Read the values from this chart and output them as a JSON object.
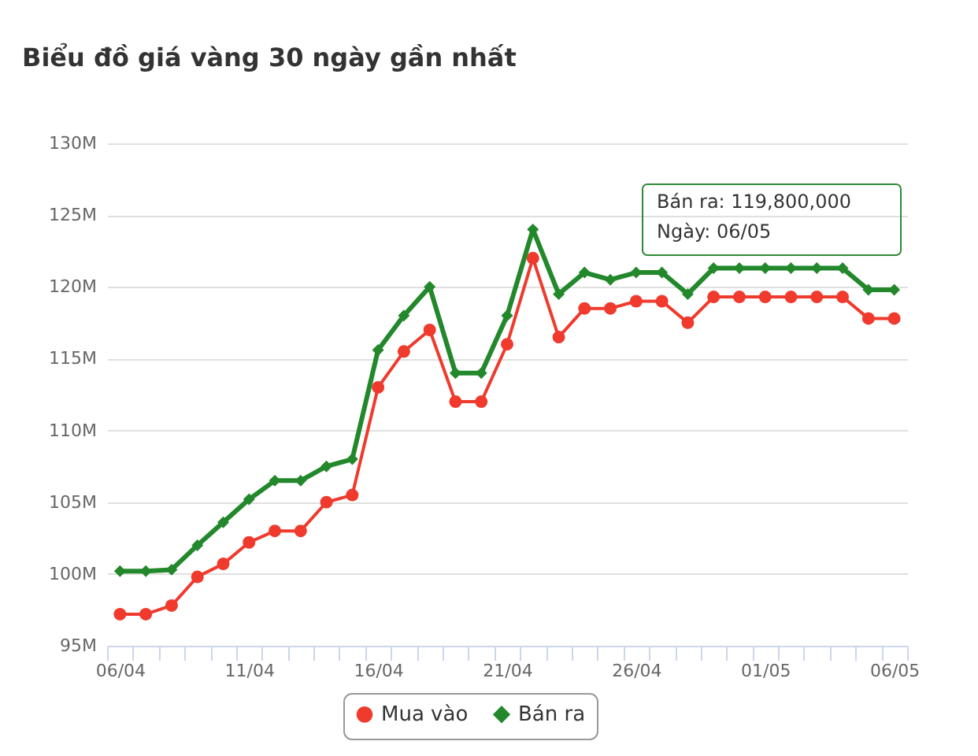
{
  "chart_data": {
    "type": "line",
    "title": "Biểu đồ giá vàng 30 ngày gần nhất",
    "categories": [
      "06/04",
      null,
      null,
      null,
      null,
      "11/04",
      null,
      null,
      null,
      null,
      "16/04",
      null,
      null,
      null,
      null,
      "21/04",
      null,
      null,
      null,
      null,
      "26/04",
      null,
      null,
      null,
      null,
      "01/05",
      null,
      null,
      null,
      null,
      "06/05"
    ],
    "series": [
      {
        "name": "Mua vào",
        "color": "#ef3a2d",
        "marker": "circle",
        "values": [
          97.2,
          97.2,
          97.8,
          99.8,
          100.7,
          102.2,
          103.0,
          103.0,
          105.0,
          105.5,
          113.0,
          115.5,
          117.0,
          112.0,
          112.0,
          116.0,
          122.0,
          116.5,
          118.5,
          118.5,
          119.0,
          119.0,
          117.5,
          119.3,
          119.3,
          119.3,
          119.3,
          119.3,
          119.3,
          117.8,
          117.8
        ]
      },
      {
        "name": "Bán ra",
        "color": "#22882b",
        "marker": "diamond",
        "values": [
          100.2,
          100.2,
          100.3,
          102.0,
          103.6,
          105.2,
          106.5,
          106.5,
          107.5,
          108.0,
          115.6,
          118.0,
          120.0,
          114.0,
          114.0,
          118.0,
          124.0,
          119.5,
          121.0,
          120.5,
          121.0,
          121.0,
          119.5,
          121.3,
          121.3,
          121.3,
          121.3,
          121.3,
          121.3,
          119.8,
          119.8
        ]
      }
    ],
    "ylim": [
      95,
      130
    ],
    "yticks": [
      {
        "value": 95,
        "label": "95M"
      },
      {
        "value": 100,
        "label": "100M"
      },
      {
        "value": 105,
        "label": "105M"
      },
      {
        "value": 110,
        "label": "110M"
      },
      {
        "value": 115,
        "label": "115M"
      },
      {
        "value": 120,
        "label": "120M"
      },
      {
        "value": 125,
        "label": "125M"
      },
      {
        "value": 130,
        "label": "130M"
      }
    ],
    "grid": "y",
    "legend": "bottom",
    "annotations": [
      "Bán ra: 119,800,000\nNgày: 06/05"
    ]
  }
}
